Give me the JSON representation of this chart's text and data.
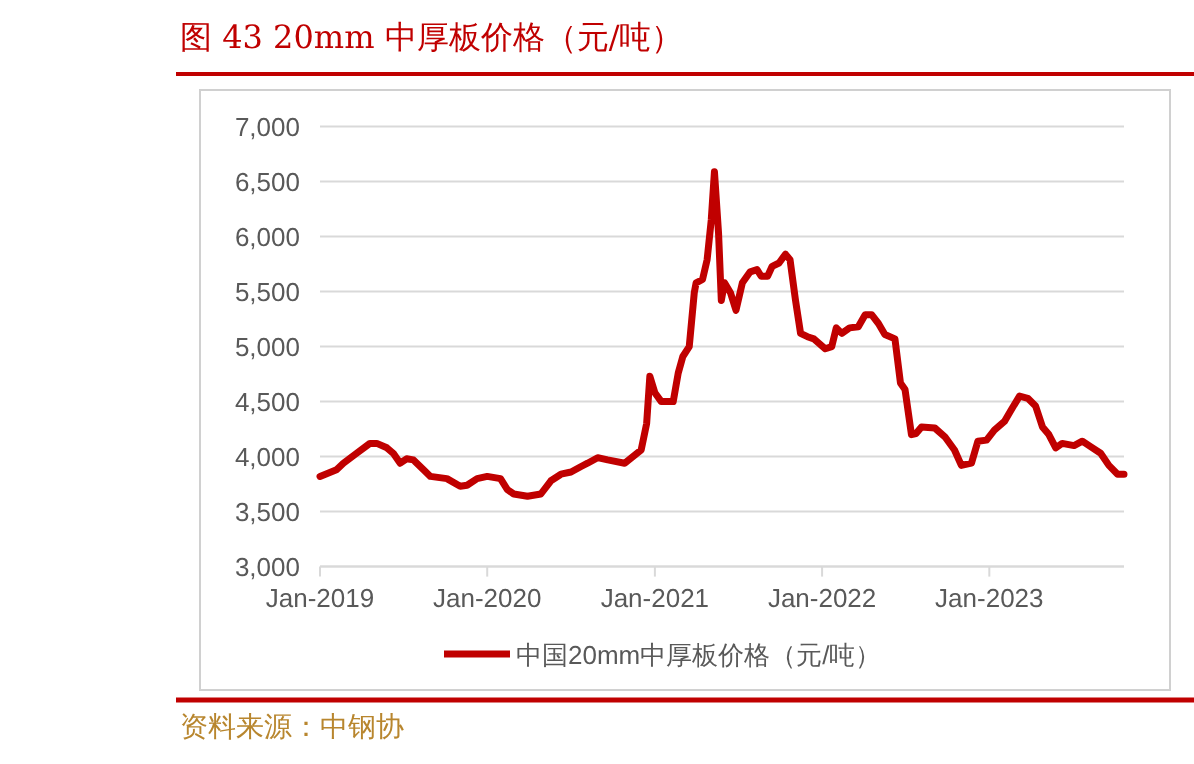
{
  "chart_data": {
    "type": "line",
    "title": "图 43  20mm 中厚板价格（元/吨）",
    "annotations": [
      "资料来源：中钢协"
    ],
    "x": [
      "2019-01-01",
      "2019-02-06",
      "2019-02-21",
      "2019-03-22",
      "2019-04-20",
      "2019-05-05",
      "2019-05-27",
      "2019-06-10",
      "2019-06-25",
      "2019-07-09",
      "2019-07-24",
      "2019-08-15",
      "2019-08-30",
      "2019-10-05",
      "2019-11-03",
      "2019-11-18",
      "2019-12-10",
      "2020-01-01",
      "2020-01-30",
      "2020-02-14",
      "2020-02-28",
      "2020-03-29",
      "2020-04-27",
      "2020-05-19",
      "2020-06-10",
      "2020-07-02",
      "2020-07-24",
      "2020-08-07",
      "2020-08-29",
      "2020-09-20",
      "2020-10-27",
      "2020-12-02",
      "2020-12-14",
      "2020-12-21",
      "2021-01-01",
      "2021-01-15",
      "2021-02-10",
      "2021-02-21",
      "2021-03-03",
      "2021-03-17",
      "2021-03-28",
      "2021-04-01",
      "2021-04-15",
      "2021-04-25",
      "2021-05-04",
      "2021-05-11",
      "2021-05-20",
      "2021-05-26",
      "2021-06-02",
      "2021-06-15",
      "2021-06-27",
      "2021-07-11",
      "2021-07-28",
      "2021-08-12",
      "2021-08-21",
      "2021-09-04",
      "2021-09-14",
      "2021-09-29",
      "2021-10-13",
      "2021-10-23",
      "2021-11-04",
      "2021-11-15",
      "2021-11-30",
      "2021-12-14",
      "2022-01-08",
      "2022-01-22",
      "2022-02-01",
      "2022-02-13",
      "2022-03-02",
      "2022-03-21",
      "2022-04-05",
      "2022-04-19",
      "2022-05-04",
      "2022-05-18",
      "2022-06-09",
      "2022-06-21",
      "2022-07-01",
      "2022-07-15",
      "2022-07-25",
      "2022-08-06",
      "2022-09-04",
      "2022-09-26",
      "2022-10-17",
      "2022-11-01",
      "2022-11-23",
      "2022-12-07",
      "2022-12-26",
      "2023-01-12",
      "2023-02-03",
      "2023-02-17",
      "2023-03-08",
      "2023-03-26",
      "2023-04-12",
      "2023-04-27",
      "2023-05-11",
      "2023-05-26",
      "2023-06-09",
      "2023-07-05",
      "2023-07-23",
      "2023-08-10",
      "2023-09-01",
      "2023-09-19",
      "2023-10-08",
      "2023-10-22"
    ],
    "series": [
      {
        "name": "中国20mm中厚板价格（元/吨）",
        "color": "#c00000",
        "values": [
          3820,
          3880,
          3940,
          4030,
          4120,
          4120,
          4080,
          4030,
          3940,
          3980,
          3970,
          3880,
          3820,
          3800,
          3730,
          3740,
          3800,
          3820,
          3800,
          3700,
          3660,
          3640,
          3660,
          3780,
          3840,
          3860,
          3910,
          3940,
          3990,
          3970,
          3940,
          4060,
          4300,
          4730,
          4580,
          4500,
          4500,
          4760,
          4910,
          5000,
          5490,
          5580,
          5610,
          5790,
          6150,
          6590,
          6030,
          5420,
          5580,
          5490,
          5330,
          5580,
          5680,
          5700,
          5640,
          5640,
          5730,
          5760,
          5840,
          5790,
          5420,
          5120,
          5090,
          5070,
          4980,
          5000,
          5170,
          5120,
          5170,
          5180,
          5290,
          5290,
          5210,
          5110,
          5070,
          4670,
          4610,
          4200,
          4210,
          4270,
          4260,
          4180,
          4060,
          3920,
          3940,
          4140,
          4150,
          4240,
          4320,
          4420,
          4550,
          4530,
          4460,
          4270,
          4200,
          4080,
          4120,
          4100,
          4140,
          4090,
          4030,
          3920,
          3840,
          3840
        ]
      }
    ],
    "xlim": [
      "2019-01-01",
      "2023-10-22"
    ],
    "xticks": [
      {
        "value": "2019-01-01",
        "label": "Jan-2019"
      },
      {
        "value": "2020-01-01",
        "label": "Jan-2020"
      },
      {
        "value": "2021-01-01",
        "label": "Jan-2021"
      },
      {
        "value": "2022-01-01",
        "label": "Jan-2022"
      },
      {
        "value": "2023-01-01",
        "label": "Jan-2023"
      }
    ],
    "ylim": [
      3000,
      7000
    ],
    "yticks": [
      {
        "value": 3000,
        "label": "3,000"
      },
      {
        "value": 3500,
        "label": "3,500"
      },
      {
        "value": 4000,
        "label": "4,000"
      },
      {
        "value": 4500,
        "label": "4,500"
      },
      {
        "value": 5000,
        "label": "5,000"
      },
      {
        "value": 5500,
        "label": "5,500"
      },
      {
        "value": 6000,
        "label": "6,000"
      },
      {
        "value": 6500,
        "label": "6,500"
      },
      {
        "value": 7000,
        "label": "7,000"
      }
    ],
    "grid": "y",
    "legend": "bottom",
    "line_style": "solid",
    "marker": "none"
  }
}
